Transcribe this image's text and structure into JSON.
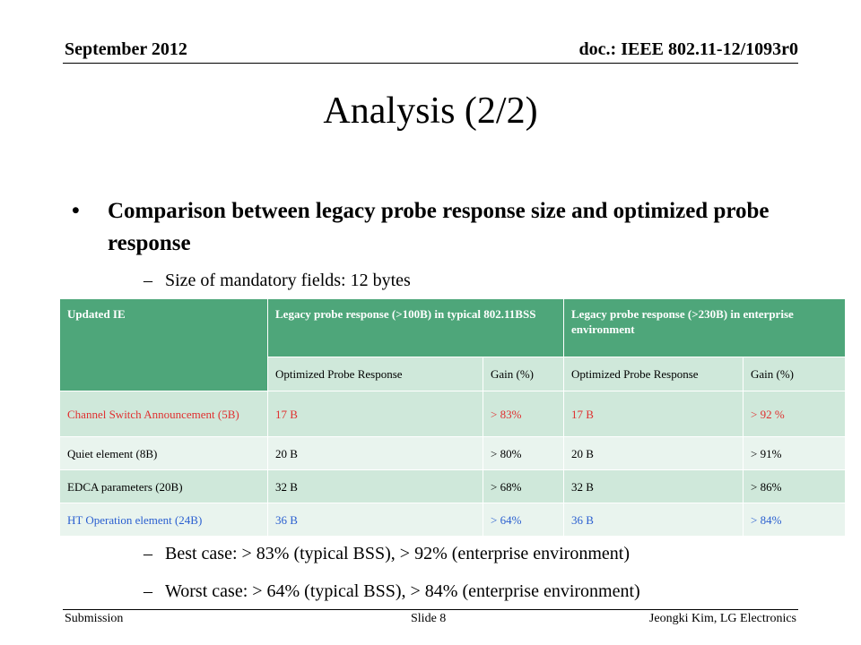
{
  "header": {
    "date": "September 2012",
    "doc": "doc.: IEEE 802.11-12/1093r0"
  },
  "title": "Analysis (2/2)",
  "bullet": {
    "symbol": "•",
    "text": "Comparison between legacy probe response size and optimized probe response"
  },
  "subs": [
    {
      "dash": "–",
      "text": "Size of mandatory fields: 12 bytes"
    },
    {
      "dash": "–",
      "text": "Best case: > 83% (typical BSS), > 92% (enterprise environment)"
    },
    {
      "dash": "–",
      "text": "Worst case: > 64% (typical BSS), > 84% (enterprise environment)"
    }
  ],
  "table": {
    "col_ie": "Updated IE",
    "group1": "Legacy probe response (>100B) in typical 802.11BSS",
    "group2": "Legacy probe response (>230B) in enterprise environment",
    "sub_headers": [
      "Optimized Probe Response",
      "Gain (%)",
      "Optimized Probe Response",
      "Gain (%)"
    ],
    "rows": [
      {
        "ie": "Channel Switch Announcement (5B)",
        "c1": "17 B",
        "c2": "> 83%",
        "c3": "17 B",
        "c4": "> 92 %",
        "color": "#e03030"
      },
      {
        "ie": "Quiet element (8B)",
        "c1": "20 B",
        "c2": "> 80%",
        "c3": "20 B",
        "c4": "> 91%",
        "color": "#000000"
      },
      {
        "ie": "EDCA parameters (20B)",
        "c1": "32 B",
        "c2": "> 68%",
        "c3": "32 B",
        "c4": "> 86%",
        "color": "#000000"
      },
      {
        "ie": "HT Operation element (24B)",
        "c1": "36 B",
        "c2": "> 64%",
        "c3": "36 B",
        "c4": "> 84%",
        "color": "#2a5fd0"
      }
    ]
  },
  "footer": {
    "left": "Submission",
    "mid": "Slide 8",
    "right": "Jeongki Kim, LG Electronics"
  }
}
